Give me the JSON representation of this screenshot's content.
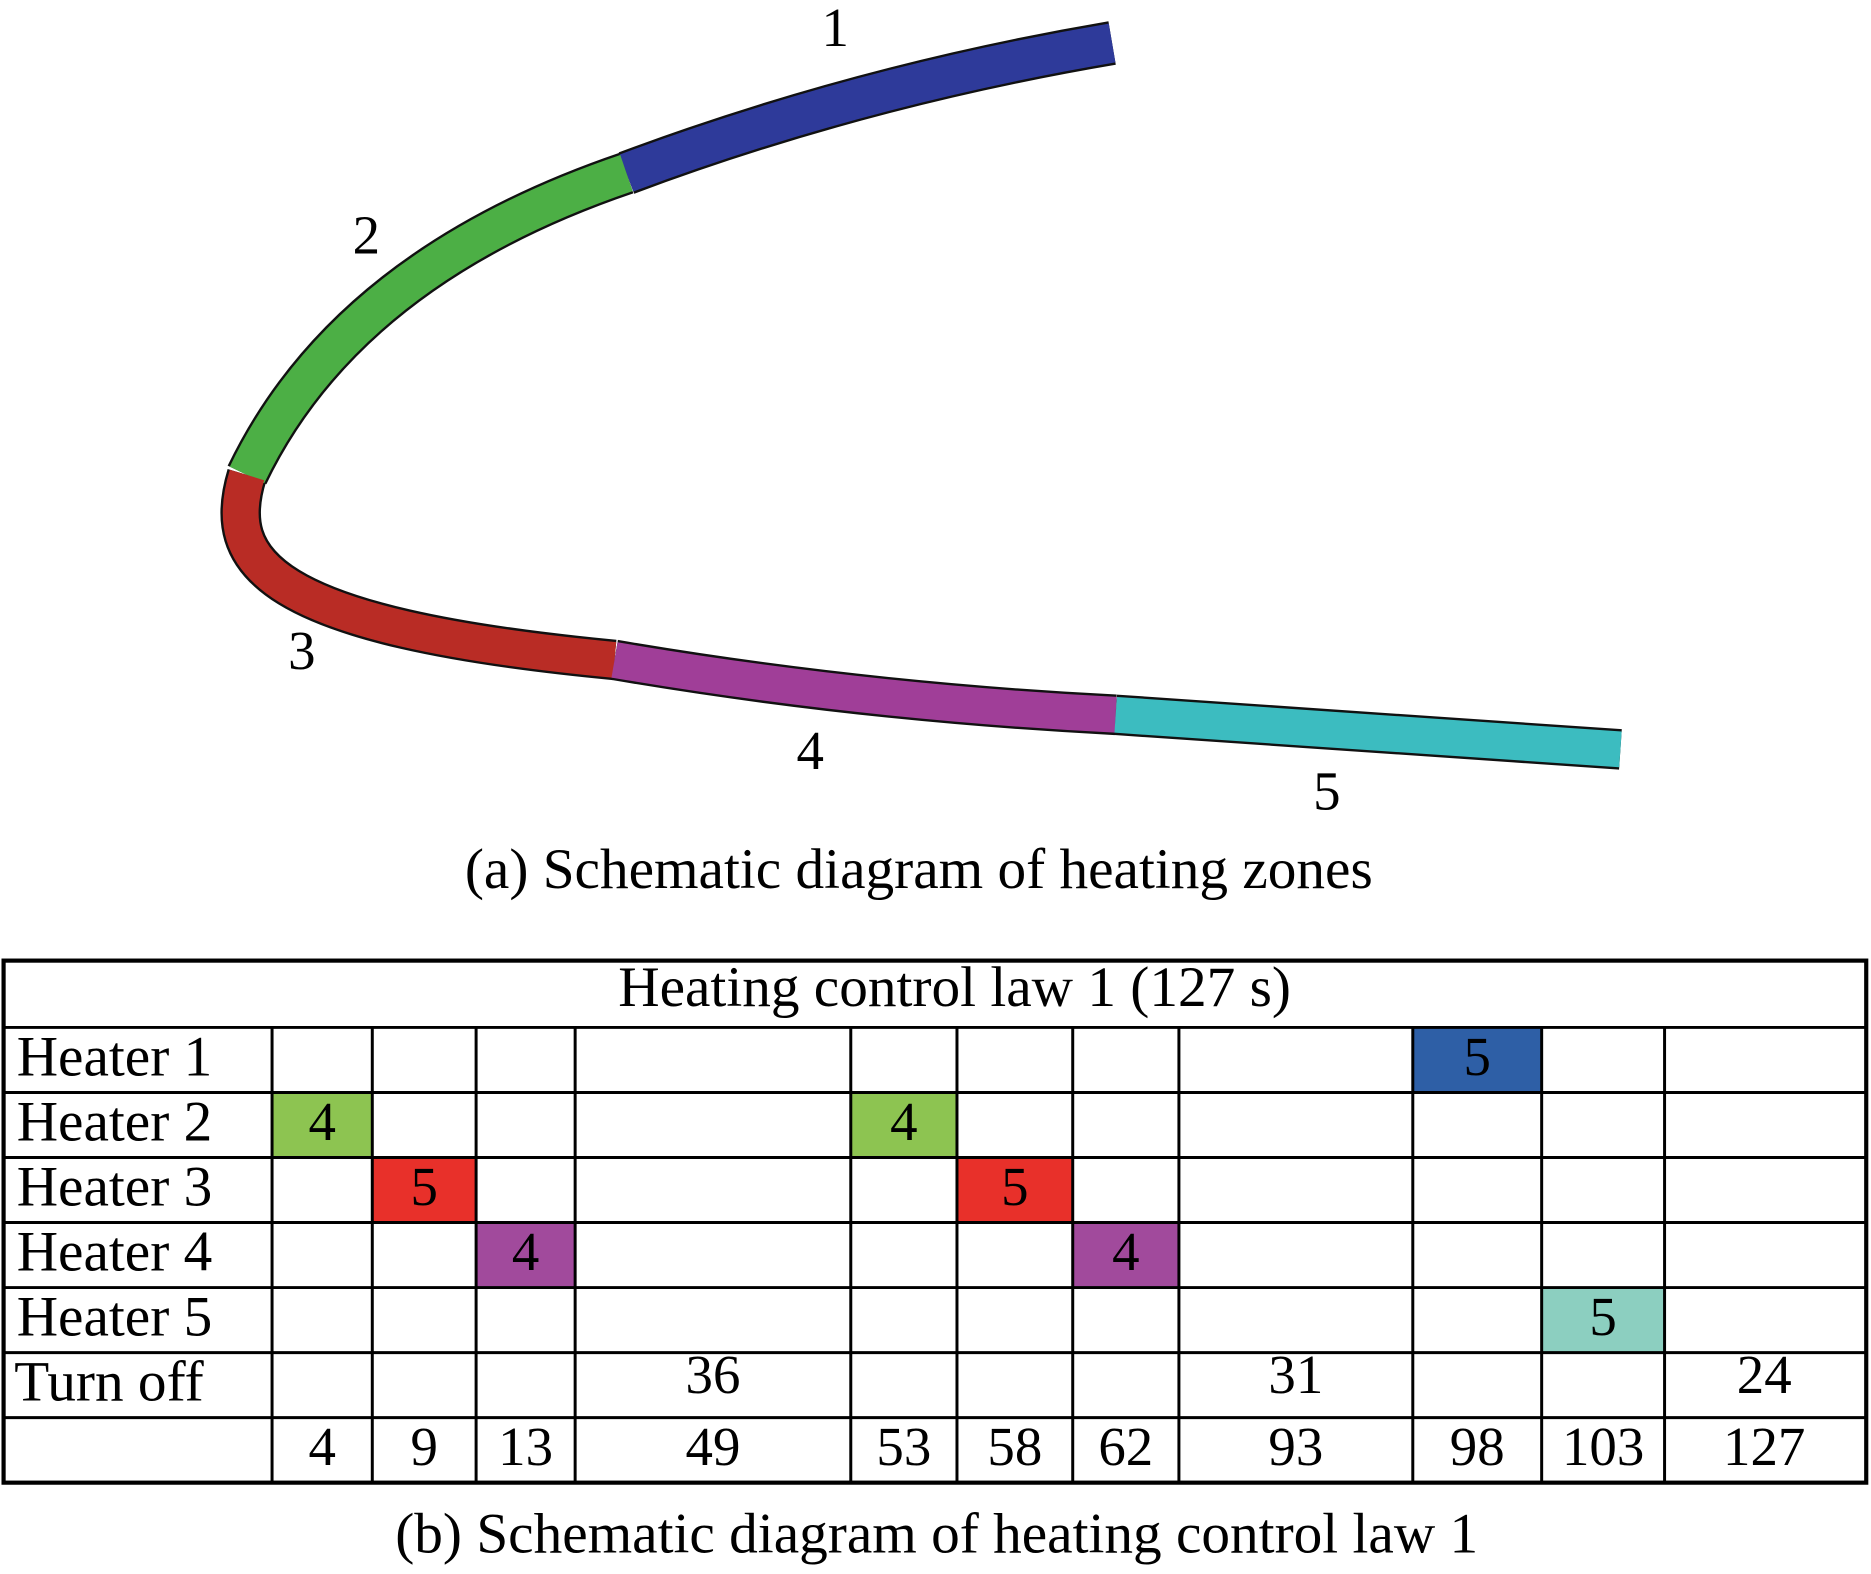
{
  "zones": [
    {
      "label": "1",
      "color": "#2e3a9a"
    },
    {
      "label": "2",
      "color": "#4caf45"
    },
    {
      "label": "3",
      "color": "#b92c25"
    },
    {
      "label": "4",
      "color": "#a03e98"
    },
    {
      "label": "5",
      "color": "#3cbcc0"
    }
  ],
  "caption_a": "(a) Schematic diagram of heating zones",
  "table": {
    "title": "Heating control law 1 (127 s)",
    "heaters": [
      {
        "label": "Heater 1",
        "color": "#2e5fa6",
        "blocks": [
          {
            "interval": 8,
            "value": 5
          }
        ]
      },
      {
        "label": "Heater 2",
        "color": "#8dc451",
        "blocks": [
          {
            "interval": 0,
            "value": 4
          },
          {
            "interval": 4,
            "value": 4
          }
        ]
      },
      {
        "label": "Heater 3",
        "color": "#e8302a",
        "blocks": [
          {
            "interval": 1,
            "value": 5
          },
          {
            "interval": 5,
            "value": 5
          }
        ]
      },
      {
        "label": "Heater 4",
        "color": "#a14a9c",
        "blocks": [
          {
            "interval": 2,
            "value": 4
          },
          {
            "interval": 6,
            "value": 4
          }
        ]
      },
      {
        "label": "Heater 5",
        "color": "#8ccfc0",
        "blocks": [
          {
            "interval": 9,
            "value": 5
          }
        ]
      }
    ],
    "turn_off": {
      "label": "Turn off",
      "blocks": [
        {
          "interval": 3,
          "value": 36
        },
        {
          "interval": 7,
          "value": 31
        },
        {
          "interval": 10,
          "value": 24
        }
      ]
    },
    "times": [
      4,
      9,
      13,
      49,
      53,
      58,
      62,
      93,
      98,
      103,
      127
    ]
  },
  "caption_b": "(b)  Schematic diagram of heating control law 1"
}
